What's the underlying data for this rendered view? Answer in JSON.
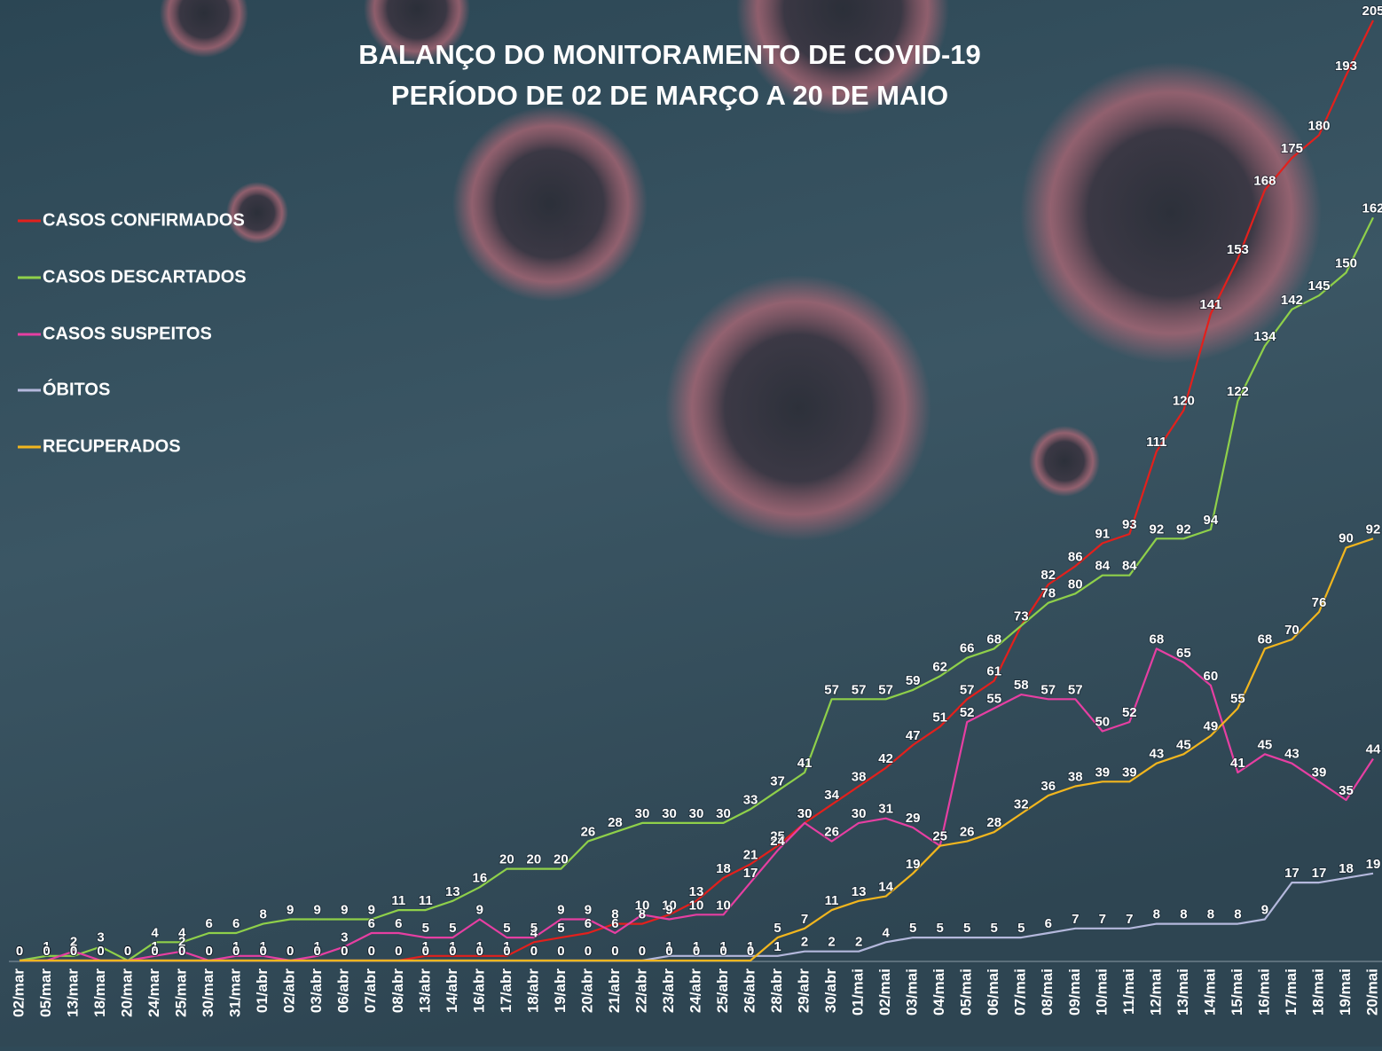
{
  "chart_data": {
    "type": "line",
    "title": "BALANÇO DO MONITORAMENTO DE COVID-19",
    "subtitle": "PERÍODO DE 02 DE MARÇO A 20 DE MAIO",
    "legend": "left",
    "categories": [
      "02/mar",
      "05/mar",
      "13/mar",
      "18/mar",
      "20/mar",
      "24/mar",
      "25/mar",
      "30/mar",
      "31/mar",
      "01/abr",
      "02/abr",
      "03/abr",
      "06/abr",
      "07/abr",
      "08/abr",
      "13/abr",
      "14/abr",
      "16/abr",
      "17/abr",
      "18/abr",
      "19/abr",
      "20/abr",
      "21/abr",
      "22/abr",
      "23/abr",
      "24/abr",
      "25/abr",
      "26/abr",
      "28/abr",
      "29/abr",
      "30/abr",
      "01/mai",
      "02/mai",
      "03/mai",
      "04/mai",
      "05/mai",
      "06/mai",
      "07/mai",
      "08/mai",
      "09/mai",
      "10/mai",
      "11/mai",
      "12/mai",
      "13/mai",
      "14/mai",
      "15/mai",
      "16/mai",
      "17/mai",
      "18/mai",
      "19/mai",
      "20/mai"
    ],
    "series": [
      {
        "name": "CASOS CONFIRMADOS",
        "color": "#e3201c",
        "values": [
          0,
          0,
          0,
          0,
          0,
          0,
          0,
          0,
          0,
          0,
          0,
          0,
          0,
          0,
          0,
          1,
          1,
          1,
          1,
          4,
          5,
          6,
          8,
          8,
          10,
          13,
          18,
          21,
          25,
          30,
          34,
          38,
          42,
          47,
          51,
          57,
          61,
          73,
          82,
          86,
          91,
          93,
          111,
          120,
          141,
          153,
          168,
          175,
          180,
          193,
          205
        ]
      },
      {
        "name": "CASOS DESCARTADOS",
        "color": "#8fd04a",
        "values": [
          0,
          1,
          1,
          3,
          0,
          4,
          4,
          6,
          6,
          8,
          9,
          9,
          9,
          9,
          11,
          11,
          13,
          16,
          20,
          20,
          20,
          26,
          28,
          30,
          30,
          30,
          30,
          33,
          37,
          41,
          57,
          57,
          57,
          59,
          62,
          66,
          68,
          73,
          78,
          80,
          84,
          84,
          92,
          92,
          94,
          122,
          134,
          142,
          145,
          150,
          162
        ]
      },
      {
        "name": "CASOS SUSPEITOS",
        "color": "#e63fa2",
        "values": [
          0,
          0,
          2,
          0,
          0,
          1,
          2,
          0,
          1,
          1,
          0,
          1,
          3,
          6,
          6,
          5,
          5,
          9,
          5,
          5,
          9,
          9,
          6,
          10,
          9,
          10,
          10,
          17,
          24,
          30,
          26,
          30,
          31,
          29,
          25,
          52,
          55,
          58,
          57,
          57,
          50,
          52,
          68,
          65,
          60,
          41,
          45,
          43,
          39,
          35,
          44
        ]
      },
      {
        "name": "ÓBITOS",
        "color": "#b4b8dc",
        "values": [
          0,
          0,
          0,
          0,
          0,
          0,
          0,
          0,
          0,
          0,
          0,
          0,
          0,
          0,
          0,
          0,
          0,
          0,
          0,
          0,
          0,
          0,
          0,
          0,
          1,
          1,
          1,
          1,
          1,
          2,
          2,
          2,
          4,
          5,
          5,
          5,
          5,
          5,
          6,
          7,
          7,
          7,
          8,
          8,
          8,
          8,
          9,
          17,
          17,
          18,
          19
        ]
      },
      {
        "name": "RECUPERADOS",
        "color": "#f2b61e",
        "values": [
          0,
          0,
          0,
          0,
          0,
          0,
          0,
          0,
          0,
          0,
          0,
          0,
          0,
          0,
          0,
          0,
          0,
          0,
          0,
          0,
          0,
          0,
          0,
          0,
          0,
          0,
          0,
          0,
          5,
          7,
          11,
          13,
          14,
          19,
          25,
          26,
          28,
          32,
          36,
          38,
          39,
          39,
          43,
          45,
          49,
          55,
          68,
          70,
          76,
          90,
          92
        ]
      }
    ]
  }
}
